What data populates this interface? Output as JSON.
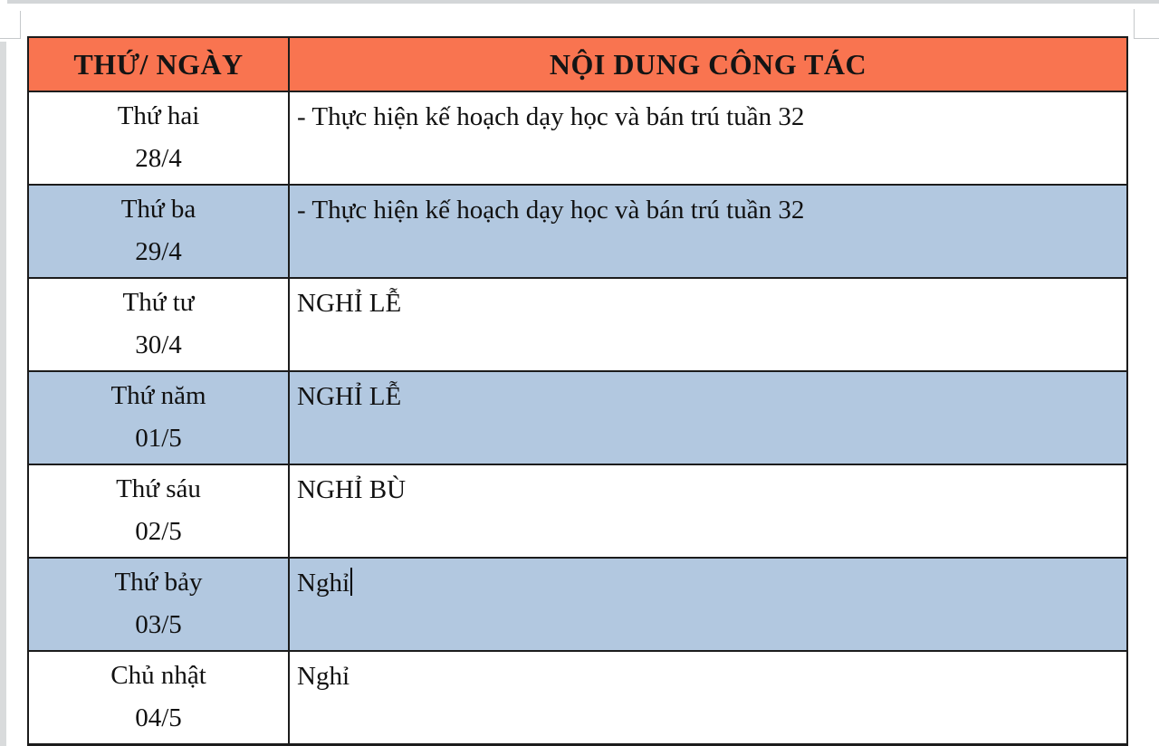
{
  "table": {
    "header": {
      "col1": "THỨ/ NGÀY",
      "col2": "NỘI DUNG CÔNG TÁC",
      "bg_color": "#F97450",
      "text_color": "#141414"
    },
    "rows": [
      {
        "day": "Thứ hai",
        "date": "28/4",
        "content": "- Thực hiện kế hoạch dạy học và bán trú tuần 32",
        "highlighted": false
      },
      {
        "day": "Thứ ba",
        "date": "29/4",
        "content": "- Thực hiện kế hoạch dạy học và bán trú tuần 32",
        "highlighted": true
      },
      {
        "day": "Thứ tư",
        "date": "30/4",
        "content": "NGHỈ LỄ",
        "highlighted": false
      },
      {
        "day": "Thứ năm",
        "date": "01/5",
        "content": "NGHỈ LỄ",
        "highlighted": true
      },
      {
        "day": "Thứ sáu",
        "date": "02/5",
        "content": "NGHỈ BÙ",
        "highlighted": false
      },
      {
        "day": "Thứ bảy",
        "date": "03/5",
        "content": "Nghỉ",
        "highlighted": true,
        "text_cursor_after_content": true
      },
      {
        "day": "Chủ nhật",
        "date": "04/5",
        "content": "Nghỉ",
        "highlighted": false
      }
    ],
    "colors": {
      "row_highlight": "#B2C8E0",
      "row_default": "#FFFFFF",
      "border": "#1C1C1C",
      "text": "#111111"
    }
  }
}
